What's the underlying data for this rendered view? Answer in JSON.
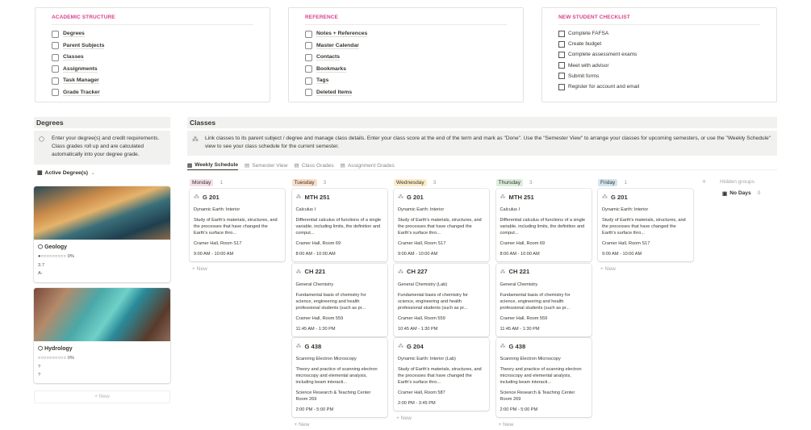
{
  "academic": {
    "title": "ACADEMIC STRUCTURE",
    "items": [
      "Degrees",
      "Parent Subjects",
      "Classes",
      "Assignments",
      "Task Manager",
      "Grade Tracker"
    ]
  },
  "reference": {
    "title": "REFERENCE",
    "items": [
      "Notes + References",
      "Master Calendar",
      "Contacts",
      "Bookmarks",
      "Tags",
      "Deleted Items"
    ]
  },
  "checklist": {
    "title": "NEW STUDENT CHECKLIST",
    "items": [
      "Complete FAFSA",
      "Create budget",
      "Complete assessment exams",
      "Meet with advisor",
      "Submit forms",
      "Register for account and email"
    ]
  },
  "degrees": {
    "title": "Degrees",
    "callout": "Enter your degree(s) and credit requirements. Class grades roll up and are calculated automatically into your degree grade.",
    "view": "Active Degree(s)",
    "new_label": "+ New",
    "cards": [
      {
        "name": "Geology",
        "progress_text": "●○○○○○○○○○ 9%",
        "progress": 0.09,
        "gpa": "3.7",
        "grade": "A-"
      },
      {
        "name": "Hydrology",
        "progress_text": "○○○○○○○○○○ 0%",
        "progress": 0,
        "gpa": "?",
        "grade": "?"
      }
    ]
  },
  "classes": {
    "title": "Classes",
    "callout": "Link classes to its parent subject / degree and manage class details. Enter your class score at the end of the term and mark as \"Done\". Use the \"Semester View\" to arrange your classes for upcoming semesters, or use the \"Weekly Schedule\" view to see your class schedule for the current semester.",
    "tabs": [
      "Weekly Schedule",
      "Semester View",
      "Class Grades",
      "Assignment Grades"
    ],
    "new_label": "+ New",
    "add_group": "+",
    "hidden_groups": "Hidden groups",
    "no_days": "No Days",
    "no_days_count": "0",
    "columns": [
      {
        "day": "Monday",
        "count": "1",
        "color": "#f5e0e9",
        "cards": [
          {
            "code": "G 201",
            "name": "Dynamic Earth: Interior",
            "desc": "Study of Earth's materials, structures, and the processes that have changed the Earth's surface thro...",
            "room": "Cramer Hall, Room S17",
            "time": "9:00 AM - 10:00 AM"
          }
        ]
      },
      {
        "day": "Tuesday",
        "count": "3",
        "color": "#fadec9",
        "cards": [
          {
            "code": "MTH 251",
            "name": "Calculus I",
            "desc": "Differential calculus of functions of a single variable, including limits, the definition and comput...",
            "room": "Cramer Hall, Room 69",
            "time": "8:00 AM - 10:00 AM"
          },
          {
            "code": "CH 221",
            "name": "General Chemistry",
            "desc": "Fundamental basis of chemistry for science, engineering and health professional students (such as pr...",
            "room": "Cramer Hall, Room 559",
            "time": "11:45 AM - 1:30 PM"
          },
          {
            "code": "G 438",
            "name": "Scanning Electron Microscopy",
            "desc": "Theory and practice of scanning electron microscopy and elemental analysis, including beam interacti...",
            "room": "Science Research & Teaching Center Room 269",
            "time": "2:00 PM - 5:00 PM"
          }
        ]
      },
      {
        "day": "Wednesday",
        "count": "3",
        "color": "#fdecc8",
        "cards": [
          {
            "code": "G 201",
            "name": "Dynamic Earth: Interior",
            "desc": "Study of Earth's materials, structures, and the processes that have changed the Earth's surface thro...",
            "room": "Cramer Hall, Room S17",
            "time": "9:00 AM - 10:00 AM"
          },
          {
            "code": "CH 227",
            "name": "General Chemistry (Lab)",
            "desc": "Fundamental basis of chemistry for science, engineering and health professional students (such as pr...",
            "room": "Cramer Hall, Room 559",
            "time": "10:45 AM - 1:30 PM"
          },
          {
            "code": "G 204",
            "name": "Dynamic Earth: Interior (Lab)",
            "desc": "Study of Earth's materials, structures, and the processes that have changed the Earth's surface thro...",
            "room": "Cramer Hall, Room 587",
            "time": "2:00 PM - 3:45 PM"
          }
        ]
      },
      {
        "day": "Thursday",
        "count": "3",
        "color": "#dbeddb",
        "cards": [
          {
            "code": "MTH 251",
            "name": "Calculus I",
            "desc": "Differential calculus of functions of a single variable, including limits, the definition and comput...",
            "room": "Cramer Hall, Room 69",
            "time": "8:00 AM - 10:00 AM"
          },
          {
            "code": "CH 221",
            "name": "General Chemistry",
            "desc": "Fundamental basis of chemistry for science, engineering and health professional students (such as pr...",
            "room": "Cramer Hall, Room 559",
            "time": "11:45 AM - 1:30 PM"
          },
          {
            "code": "G 438",
            "name": "Scanning Electron Microscopy",
            "desc": "Theory and practice of scanning electron microscopy and elemental analysis, including beam interacti...",
            "room": "Science Research & Teaching Center Room 269",
            "time": "2:00 PM - 5:00 PM"
          }
        ]
      },
      {
        "day": "Friday",
        "count": "1",
        "color": "#d3e5ef",
        "cards": [
          {
            "code": "G 201",
            "name": "Dynamic Earth: Interior",
            "desc": "Study of Earth's materials, structures, and the processes that have changed the Earth's surface thro...",
            "room": "Cramer Hall, Room S17",
            "time": "9:00 AM - 10:00 AM"
          }
        ]
      }
    ]
  },
  "colors": {
    "accent": "#d9418c",
    "callout_bg": "#f1f1ef"
  }
}
